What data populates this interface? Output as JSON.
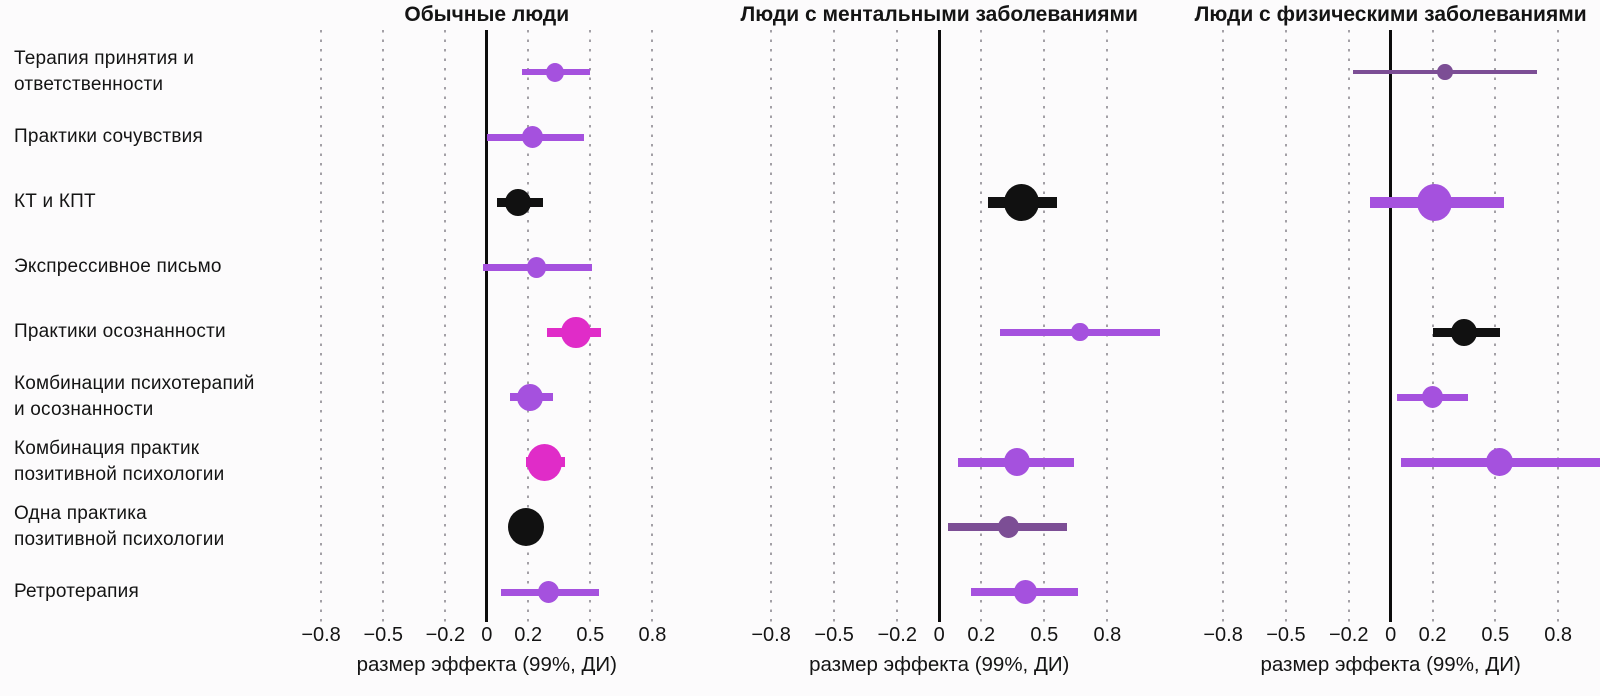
{
  "chart_data": {
    "type": "scatter",
    "subtype": "forest-plot",
    "description": "Effect sizes with 99% confidence intervals for psychotherapy practices across three populations",
    "xlabel": "размер эффекта (99%, ДИ)",
    "x_tick_values": [
      -0.8,
      -0.5,
      -0.2,
      0,
      0.2,
      0.5,
      0.8
    ],
    "x_tick_labels": [
      "−0.8",
      "−0.5",
      "−0.2",
      "0",
      "0.2",
      "0.5",
      "0.8"
    ],
    "grid": "dotted vertical gridlines at each tick, solid black vertical line at 0",
    "legend": "none",
    "colors": {
      "purple": "#a551de",
      "magenta": "#e02cc8",
      "black": "#111111",
      "plum": "#7c4e95",
      "gridline": "#a3a0a6",
      "zero_line": "#0c0c0c"
    },
    "rows": [
      {
        "label_lines": [
          "Терапия принятия и",
          "ответственности"
        ]
      },
      {
        "label_lines": [
          "Практики сочувствия"
        ]
      },
      {
        "label_lines": [
          "КТ и КПТ"
        ]
      },
      {
        "label_lines": [
          "Экспрессивное письмо"
        ]
      },
      {
        "label_lines": [
          "Практики осознанности"
        ]
      },
      {
        "label_lines": [
          "Комбинации психотерапий",
          "и осознанности"
        ]
      },
      {
        "label_lines": [
          "Комбинация практик",
          "позитивной психологии"
        ]
      },
      {
        "label_lines": [
          "Одна практика",
          "позитивной психологии"
        ]
      },
      {
        "label_lines": [
          "Ретротерапия"
        ]
      }
    ],
    "panels": [
      {
        "title": "Обычные люди",
        "xlim": [
          -0.95,
          0.875
        ],
        "points": [
          {
            "row": 0,
            "value": 0.33,
            "ci": [
              0.17,
              0.5
            ],
            "color": "purple",
            "dot_d": 19,
            "line_w": 6
          },
          {
            "row": 1,
            "value": 0.22,
            "ci": [
              0.0,
              0.47
            ],
            "color": "purple",
            "dot_d": 22,
            "line_w": 7
          },
          {
            "row": 2,
            "value": 0.15,
            "ci": [
              0.05,
              0.27
            ],
            "color": "black",
            "dot_d": 27,
            "line_w": 9
          },
          {
            "row": 3,
            "value": 0.24,
            "ci": [
              -0.02,
              0.51
            ],
            "color": "purple",
            "dot_d": 21,
            "line_w": 7
          },
          {
            "row": 4,
            "value": 0.43,
            "ci": [
              0.29,
              0.55
            ],
            "color": "magenta",
            "dot_d": 31,
            "line_w": 9
          },
          {
            "row": 5,
            "value": 0.21,
            "ci": [
              0.11,
              0.32
            ],
            "color": "purple",
            "dot_d": 27,
            "line_w": 8
          },
          {
            "row": 6,
            "value": 0.28,
            "ci": [
              0.19,
              0.38
            ],
            "color": "magenta",
            "dot_d": 37,
            "line_w": 10
          },
          {
            "row": 7,
            "value": 0.19,
            "ci": [
              0.12,
              0.27
            ],
            "color": "black",
            "dot_d": 38,
            "line_w": 10
          },
          {
            "row": 8,
            "value": 0.3,
            "ci": [
              0.07,
              0.54
            ],
            "color": "purple",
            "dot_d": 22,
            "line_w": 7
          }
        ]
      },
      {
        "title": "Люди с ментальными заболеваниями",
        "xlim": [
          -0.91,
          1.06
        ],
        "points": [
          {
            "row": 2,
            "value": 0.39,
            "ci": [
              0.23,
              0.56
            ],
            "color": "black",
            "dot_d": 37,
            "line_w": 11
          },
          {
            "row": 4,
            "value": 0.67,
            "ci": [
              0.29,
              1.05
            ],
            "color": "purple",
            "dot_d": 18,
            "line_w": 7
          },
          {
            "row": 6,
            "value": 0.37,
            "ci": [
              0.09,
              0.64
            ],
            "color": "purple",
            "dot_d": 28,
            "line_w": 9
          },
          {
            "row": 7,
            "value": 0.33,
            "ci": [
              0.04,
              0.61
            ],
            "color": "plum",
            "dot_d": 22,
            "line_w": 8
          },
          {
            "row": 8,
            "value": 0.41,
            "ci": [
              0.15,
              0.66
            ],
            "color": "purple",
            "dot_d": 24,
            "line_w": 8
          }
        ]
      },
      {
        "title": "Люди с физическими заболеваниями",
        "xlim": [
          -0.92,
          1.0
        ],
        "points": [
          {
            "row": 0,
            "value": 0.26,
            "ci": [
              -0.18,
              0.7
            ],
            "color": "plum",
            "dot_d": 16,
            "line_w": 4
          },
          {
            "row": 2,
            "value": 0.21,
            "ci": [
              -0.1,
              0.54
            ],
            "color": "purple",
            "dot_d": 37,
            "line_w": 11
          },
          {
            "row": 4,
            "value": 0.35,
            "ci": [
              0.2,
              0.52
            ],
            "color": "black",
            "dot_d": 27,
            "line_w": 9
          },
          {
            "row": 5,
            "value": 0.2,
            "ci": [
              0.03,
              0.37
            ],
            "color": "purple",
            "dot_d": 22,
            "line_w": 7
          },
          {
            "row": 6,
            "value": 0.52,
            "ci": [
              0.05,
              1.06
            ],
            "color": "purple",
            "dot_d": 28,
            "line_w": 9
          }
        ]
      }
    ]
  }
}
